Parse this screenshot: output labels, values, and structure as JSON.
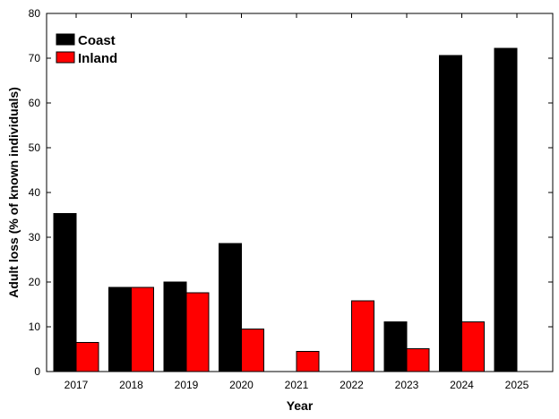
{
  "chart_data": {
    "type": "bar",
    "title": "",
    "xlabel": "Year",
    "ylabel": "Adult loss (% of known individuals)",
    "categories": [
      "2017",
      "2018",
      "2019",
      "2020",
      "2021",
      "2022",
      "2023",
      "2024",
      "2025"
    ],
    "series": [
      {
        "name": "Coast",
        "color": "#000000",
        "values": [
          35.3,
          18.8,
          20.0,
          28.6,
          null,
          null,
          11.1,
          70.6,
          72.2
        ]
      },
      {
        "name": "Inland",
        "color": "#ff0000",
        "values": [
          6.5,
          18.8,
          17.6,
          9.5,
          4.5,
          15.8,
          5.1,
          11.1,
          null
        ]
      }
    ],
    "ylim": [
      0,
      80
    ],
    "yticks": [
      0,
      10,
      20,
      30,
      40,
      50,
      60,
      70,
      80
    ],
    "grid": false,
    "legend_position": "top-left"
  }
}
